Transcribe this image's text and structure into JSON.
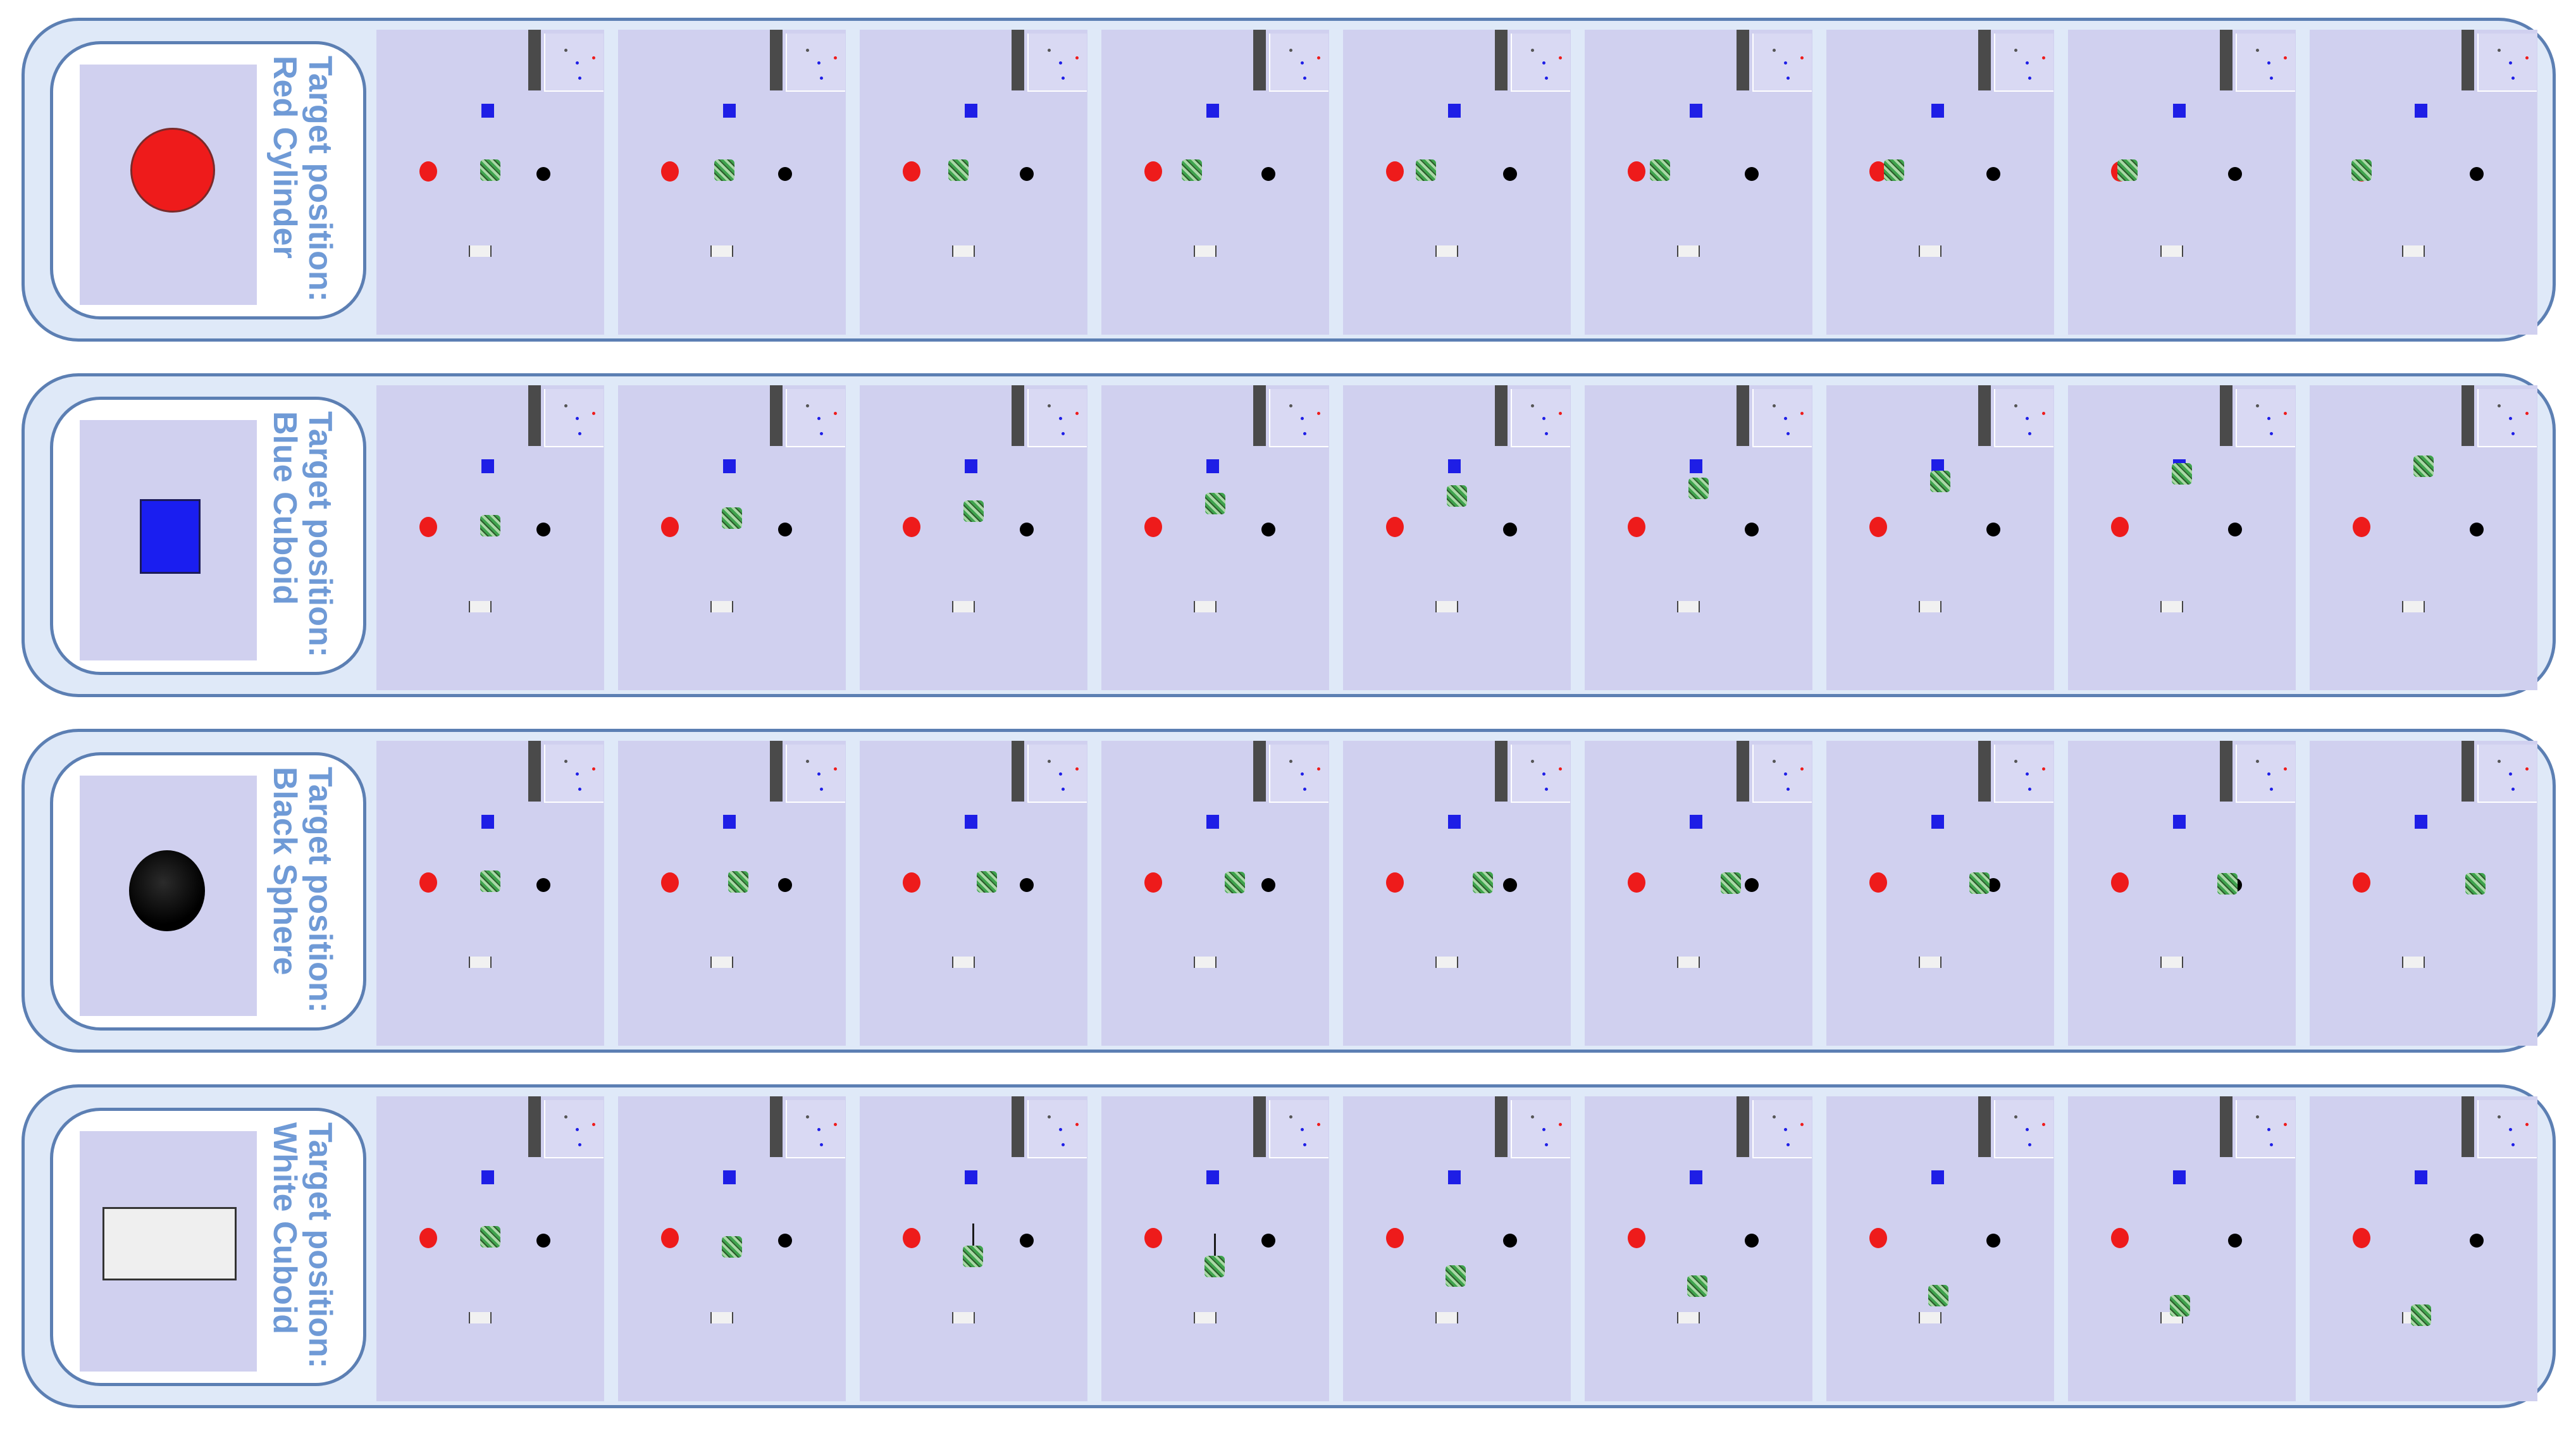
{
  "rows": [
    {
      "label_line1": "Target position:",
      "label_line2": "Red Cylinder",
      "target_icon": "red-cylinder-icon"
    },
    {
      "label_line1": "Target position:",
      "label_line2": "Blue Cuboid",
      "target_icon": "blue-cuboid-icon"
    },
    {
      "label_line1": "Target position:",
      "label_line2": "Black Sphere",
      "target_icon": "black-sphere-icon"
    },
    {
      "label_line1": "Target position:",
      "label_line2": "White Cuboid",
      "target_icon": "white-cuboid-icon"
    }
  ],
  "colors": {
    "red": "#ee1b1b",
    "blue": "#1e1ee6",
    "black": "#000000",
    "white": "#f1f1f1",
    "robot_green": "#3fa34d",
    "frame_bg": "#d0d0ef",
    "row_bg": "#dfe9f8",
    "border": "#5c7fb3",
    "label": "#6f9ad6"
  },
  "frames_per_row": 9
}
